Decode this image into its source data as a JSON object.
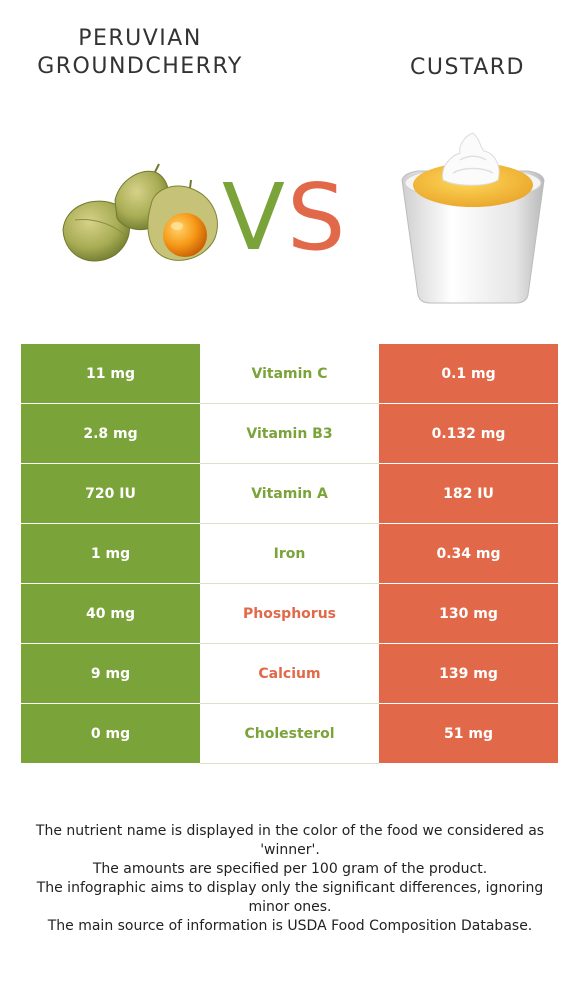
{
  "foods": {
    "left": {
      "name": "PERUVIAN GROUNDCHERRY",
      "color": "#7aa33a"
    },
    "right": {
      "name": "CUSTARD",
      "color": "#e1694a"
    }
  },
  "vs": {
    "v": "V",
    "s": "S"
  },
  "nutrients": [
    {
      "name": "Vitamin C",
      "left": "11 mg",
      "right": "0.1 mg",
      "winner": "left"
    },
    {
      "name": "Vitamin B3",
      "left": "2.8 mg",
      "right": "0.132 mg",
      "winner": "left"
    },
    {
      "name": "Vitamin A",
      "left": "720 IU",
      "right": "182 IU",
      "winner": "left"
    },
    {
      "name": "Iron",
      "left": "1 mg",
      "right": "0.34 mg",
      "winner": "left"
    },
    {
      "name": "Phosphorus",
      "left": "40 mg",
      "right": "130 mg",
      "winner": "right"
    },
    {
      "name": "Calcium",
      "left": "9 mg",
      "right": "139 mg",
      "winner": "right"
    },
    {
      "name": "Cholesterol",
      "left": "0 mg",
      "right": "51 mg",
      "winner": "left"
    }
  ],
  "footer": [
    "The nutrient name is displayed in the color of the food we considered as 'winner'.",
    "The amounts are specified per 100 gram of the product.",
    "The infographic aims to display only the significant differences, ignoring minor ones.",
    "The main source of information is USDA Food Composition Database."
  ]
}
